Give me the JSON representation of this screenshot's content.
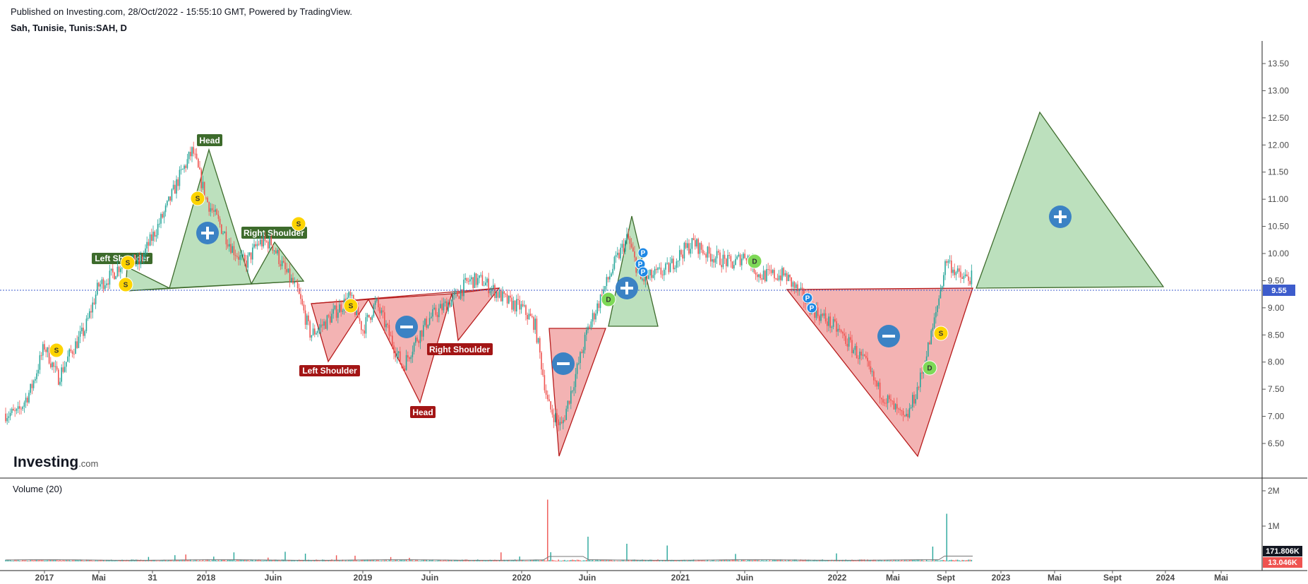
{
  "header": {
    "published": "Published on Investing.com, 28/Oct/2022 - 15:55:10 GMT, Powered by TradingView.",
    "symbol": "Sah, Tunisie, Tunis:SAH, D"
  },
  "logo": {
    "main": "Investing",
    "suffix": ".com"
  },
  "volume_panel": {
    "title": "Volume (20)"
  },
  "colors": {
    "up": "#26a69a",
    "down": "#ef5350",
    "bull_fill": "#a5d6a7",
    "bull_stroke": "#3d6b2c",
    "bear_fill": "#ef9a9a",
    "bear_stroke": "#b71c1c",
    "bull_label": "#3d6b2c",
    "bear_label": "#a31515",
    "price_tag": "#3d5ccc",
    "volume_tag_dark": "#131722",
    "volume_tag_red": "#ef5350",
    "signal_s": "#fdd400",
    "signal_d": "#7ed957",
    "signal_p": "#1e88e5",
    "plus_minus": "#3b82c4"
  },
  "chart_data": [
    {
      "type": "candlestick",
      "title": "Sah, Tunisie, Tunis:SAH, D",
      "yaxis": {
        "ticks": [
          "6.50",
          "7.00",
          "7.50",
          "8.00",
          "8.50",
          "9.00",
          "9.50",
          "10.00",
          "10.50",
          "11.00",
          "11.50",
          "12.00",
          "12.50",
          "13.00",
          "13.50"
        ],
        "range": [
          6.2,
          13.75
        ]
      },
      "xaxis": {
        "ticks": [
          "2017",
          "Mai",
          "31",
          "2018",
          "Juin",
          "2019",
          "Juin",
          "2020",
          "Juin",
          "2021",
          "Juin",
          "2022",
          "Mai",
          "Sept",
          "2023",
          "Mai",
          "Sept",
          "2024",
          "Mai"
        ]
      },
      "last_price": "9.55",
      "price_path": [
        [
          "2016-11",
          7.05
        ],
        [
          "2016-12",
          7.5
        ],
        [
          "2017-01",
          8.3
        ],
        [
          "2017-02",
          7.7
        ],
        [
          "2017-03",
          8.2
        ],
        [
          "2017-04",
          8.6
        ],
        [
          "2017-05",
          9.4
        ],
        [
          "2017-06",
          9.6
        ],
        [
          "2017-07",
          9.9
        ],
        [
          "2017-08",
          9.8
        ],
        [
          "2017-10",
          10.8
        ],
        [
          "2017-11",
          11.4
        ],
        [
          "2017-12",
          11.9
        ],
        [
          "2018-01",
          11.0
        ],
        [
          "2018-03",
          10.1
        ],
        [
          "2018-04",
          9.8
        ],
        [
          "2018-05",
          10.2
        ],
        [
          "2018-06",
          10.2
        ],
        [
          "2018-07",
          9.7
        ],
        [
          "2018-08",
          9.3
        ],
        [
          "2018-09",
          8.5
        ],
        [
          "2018-10",
          8.7
        ],
        [
          "2018-12",
          9.2
        ],
        [
          "2019-01",
          8.6
        ],
        [
          "2019-02",
          9.1
        ],
        [
          "2019-03",
          8.5
        ],
        [
          "2019-04",
          7.9
        ],
        [
          "2019-05",
          8.4
        ],
        [
          "2019-06",
          8.8
        ],
        [
          "2019-07",
          9.0
        ],
        [
          "2019-08",
          9.2
        ],
        [
          "2019-09",
          9.5
        ],
        [
          "2019-10",
          9.5
        ],
        [
          "2019-11",
          9.3
        ],
        [
          "2019-12",
          9.1
        ],
        [
          "2020-01",
          9.0
        ],
        [
          "2020-02",
          8.7
        ],
        [
          "2020-03",
          7.2
        ],
        [
          "2020-04",
          6.8
        ],
        [
          "2020-05",
          7.7
        ],
        [
          "2020-06",
          8.6
        ],
        [
          "2020-07",
          9.2
        ],
        [
          "2020-08",
          9.8
        ],
        [
          "2020-09",
          10.3
        ],
        [
          "2020-10",
          9.5
        ],
        [
          "2020-11",
          9.6
        ],
        [
          "2020-12",
          9.7
        ],
        [
          "2021-01",
          10.0
        ],
        [
          "2021-02",
          10.2
        ],
        [
          "2021-03",
          10.0
        ],
        [
          "2021-04",
          9.9
        ],
        [
          "2021-05",
          9.8
        ],
        [
          "2021-06",
          10.0
        ],
        [
          "2021-07",
          9.6
        ],
        [
          "2021-08",
          9.6
        ],
        [
          "2021-09",
          9.6
        ],
        [
          "2021-10",
          9.3
        ],
        [
          "2021-11",
          9.0
        ],
        [
          "2021-12",
          8.8
        ],
        [
          "2022-01",
          8.6
        ],
        [
          "2022-02",
          8.3
        ],
        [
          "2022-03",
          8.0
        ],
        [
          "2022-04",
          7.5
        ],
        [
          "2022-05",
          7.2
        ],
        [
          "2022-06",
          6.9
        ],
        [
          "2022-07",
          7.6
        ],
        [
          "2022-08",
          8.6
        ],
        [
          "2022-09",
          9.9
        ],
        [
          "2022-10",
          9.55
        ]
      ],
      "patterns": [
        {
          "name": "Head and Shoulders",
          "direction": "bullish",
          "labels": [
            "Left Shoulder",
            "Head",
            "Right Shoulder"
          ]
        },
        {
          "name": "Inverse Head and Shoulders",
          "direction": "bearish",
          "labels": [
            "Left Shoulder",
            "Head",
            "Right Shoulder"
          ]
        },
        {
          "name": "Triangle",
          "direction": "bearish"
        },
        {
          "name": "Triangle",
          "direction": "bullish"
        },
        {
          "name": "Triangle",
          "direction": "bearish"
        },
        {
          "name": "Triangle",
          "direction": "bullish",
          "projected": true
        }
      ],
      "signals": [
        {
          "letter": "S",
          "kind": "s"
        },
        {
          "letter": "S",
          "kind": "s"
        },
        {
          "letter": "S",
          "kind": "s"
        },
        {
          "letter": "S",
          "kind": "s"
        },
        {
          "letter": "S",
          "kind": "s"
        },
        {
          "letter": "S",
          "kind": "s"
        },
        {
          "letter": "D",
          "kind": "d"
        },
        {
          "letter": "D",
          "kind": "d"
        },
        {
          "letter": "D",
          "kind": "d"
        },
        {
          "letter": "S",
          "kind": "s"
        },
        {
          "letter": "P",
          "kind": "p"
        },
        {
          "letter": "P",
          "kind": "p"
        },
        {
          "letter": "P",
          "kind": "p"
        },
        {
          "letter": "P",
          "kind": "p"
        },
        {
          "letter": "P",
          "kind": "p"
        }
      ]
    },
    {
      "type": "bar",
      "title": "Volume (20)",
      "yaxis": {
        "ticks": [
          "2M",
          "1M"
        ],
        "range": [
          0,
          2000000
        ]
      },
      "spikes": [
        {
          "date": "2020-03",
          "value": 1750000
        },
        {
          "date": "2020-06",
          "value": 700000
        },
        {
          "date": "2020-09",
          "value": 500000
        },
        {
          "date": "2020-12",
          "value": 450000
        },
        {
          "date": "2022-09",
          "value": 1350000
        },
        {
          "date": "2022-08",
          "value": 420000
        }
      ],
      "tags": [
        "171.806K",
        "13.046K"
      ]
    }
  ]
}
